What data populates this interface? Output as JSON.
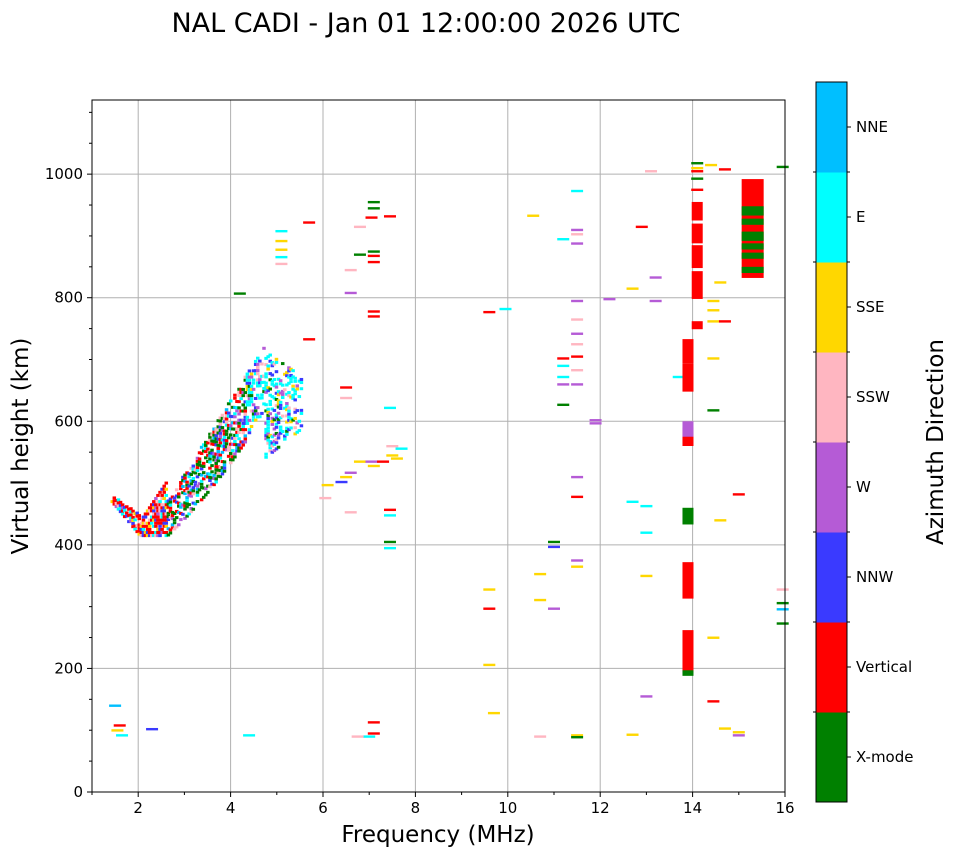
{
  "chart_data": {
    "type": "scatter",
    "title": "NAL CADI - Jan 01 12:00:00 2026 UTC",
    "xlabel": "Frequency (MHz)",
    "ylabel": "Virtual height (km)",
    "xlim": [
      1,
      16
    ],
    "ylim": [
      0,
      1120
    ],
    "xticks": [
      2,
      4,
      6,
      8,
      10,
      12,
      14,
      16
    ],
    "yticks": [
      0,
      200,
      400,
      600,
      800,
      1000
    ],
    "grid": true,
    "colorbar": {
      "title": "Azimuth Direction",
      "categories": [
        "X-mode",
        "Vertical",
        "NNW",
        "W",
        "SSW",
        "SSE",
        "E",
        "NNE"
      ],
      "colors": [
        "#008000",
        "#ff0000",
        "#3a3aff",
        "#b55bd6",
        "#ffb6c1",
        "#ffd700",
        "#00ffff",
        "#00bfff"
      ]
    },
    "cluster": {
      "description": "dense echo trace",
      "freq_range": [
        1.4,
        5.5
      ],
      "height_range": [
        405,
        810
      ]
    },
    "points": [
      [
        1.5,
        140,
        "NNE"
      ],
      [
        1.6,
        108,
        "Vertical"
      ],
      [
        1.55,
        100,
        "SSE"
      ],
      [
        1.65,
        92,
        "E"
      ],
      [
        2.3,
        102,
        "NNW"
      ],
      [
        4.4,
        92,
        "E"
      ],
      [
        7.0,
        90,
        "E"
      ],
      [
        7.1,
        113,
        "Vertical"
      ],
      [
        7.1,
        95,
        "Vertical"
      ],
      [
        5.1,
        908,
        "E"
      ],
      [
        5.1,
        892,
        "SSE"
      ],
      [
        5.1,
        878,
        "SSE"
      ],
      [
        5.1,
        866,
        "E"
      ],
      [
        5.1,
        855,
        "SSW"
      ],
      [
        5.7,
        922,
        "Vertical"
      ],
      [
        5.7,
        733,
        "Vertical"
      ],
      [
        4.2,
        807,
        "X-mode"
      ],
      [
        6.8,
        915,
        "SSW"
      ],
      [
        6.8,
        870,
        "X-mode"
      ],
      [
        6.6,
        845,
        "SSW"
      ],
      [
        6.6,
        808,
        "W"
      ],
      [
        7.1,
        955,
        "X-mode"
      ],
      [
        7.1,
        945,
        "X-mode"
      ],
      [
        7.05,
        930,
        "Vertical"
      ],
      [
        7.45,
        932,
        "Vertical"
      ],
      [
        7.1,
        875,
        "X-mode"
      ],
      [
        7.1,
        868,
        "Vertical"
      ],
      [
        7.1,
        858,
        "Vertical"
      ],
      [
        7.1,
        778,
        "Vertical"
      ],
      [
        7.1,
        770,
        "Vertical"
      ],
      [
        6.5,
        655,
        "Vertical"
      ],
      [
        6.5,
        638,
        "SSW"
      ],
      [
        7.45,
        622,
        "E"
      ],
      [
        6.6,
        517,
        "W"
      ],
      [
        6.4,
        502,
        "NNW"
      ],
      [
        6.5,
        510,
        "SSE"
      ],
      [
        6.6,
        453,
        "SSW"
      ],
      [
        6.1,
        497,
        "SSE"
      ],
      [
        6.05,
        476,
        "SSW"
      ],
      [
        6.8,
        535,
        "SSE"
      ],
      [
        7.05,
        535,
        "W"
      ],
      [
        7.1,
        528,
        "SSE"
      ],
      [
        7.3,
        535,
        "Vertical"
      ],
      [
        7.5,
        545,
        "SSE"
      ],
      [
        7.6,
        540,
        "SSE"
      ],
      [
        7.5,
        560,
        "SSW"
      ],
      [
        7.7,
        556,
        "E"
      ],
      [
        7.45,
        457,
        "Vertical"
      ],
      [
        7.45,
        448,
        "E"
      ],
      [
        7.45,
        405,
        "X-mode"
      ],
      [
        7.45,
        395,
        "E"
      ],
      [
        6.75,
        90,
        "SSW"
      ],
      [
        9.6,
        777,
        "Vertical"
      ],
      [
        9.95,
        782,
        "E"
      ],
      [
        10.55,
        933,
        "SSE"
      ],
      [
        11.5,
        973,
        "E"
      ],
      [
        11.5,
        910,
        "W"
      ],
      [
        11.5,
        903,
        "SSW"
      ],
      [
        11.5,
        888,
        "W"
      ],
      [
        11.2,
        895,
        "E"
      ],
      [
        11.5,
        795,
        "W"
      ],
      [
        11.5,
        765,
        "SSW"
      ],
      [
        11.5,
        742,
        "W"
      ],
      [
        11.5,
        725,
        "SSW"
      ],
      [
        11.5,
        705,
        "Vertical"
      ],
      [
        11.5,
        683,
        "SSW"
      ],
      [
        11.5,
        660,
        "W"
      ],
      [
        11.2,
        702,
        "Vertical"
      ],
      [
        11.2,
        690,
        "E"
      ],
      [
        11.2,
        672,
        "E"
      ],
      [
        11.2,
        660,
        "W"
      ],
      [
        11.2,
        627,
        "X-mode"
      ],
      [
        11.9,
        602,
        "W"
      ],
      [
        11.9,
        597,
        "W"
      ],
      [
        11.5,
        510,
        "W"
      ],
      [
        11.5,
        478,
        "Vertical"
      ],
      [
        11.5,
        375,
        "W"
      ],
      [
        11.5,
        365,
        "SSE"
      ],
      [
        11.0,
        405,
        "X-mode"
      ],
      [
        11.0,
        397,
        "NNW"
      ],
      [
        12.2,
        798,
        "W"
      ],
      [
        12.7,
        815,
        "SSE"
      ],
      [
        13.1,
        1005,
        "SSW"
      ],
      [
        12.9,
        915,
        "Vertical"
      ],
      [
        13.2,
        833,
        "W"
      ],
      [
        13.2,
        795,
        "W"
      ],
      [
        13.7,
        672,
        "E"
      ],
      [
        12.7,
        470,
        "E"
      ],
      [
        13.0,
        463,
        "E"
      ],
      [
        13.0,
        420,
        "E"
      ],
      [
        13.0,
        350,
        "SSE"
      ],
      [
        9.6,
        328,
        "SSE"
      ],
      [
        9.6,
        297,
        "Vertical"
      ],
      [
        9.6,
        206,
        "SSE"
      ],
      [
        9.7,
        128,
        "SSE"
      ],
      [
        10.7,
        353,
        "SSE"
      ],
      [
        10.7,
        311,
        "SSE"
      ],
      [
        11.0,
        297,
        "W"
      ],
      [
        10.7,
        90,
        "SSW"
      ],
      [
        11.5,
        92,
        "SSE"
      ],
      [
        11.5,
        89,
        "X-mode"
      ],
      [
        12.7,
        93,
        "SSE"
      ],
      [
        13.0,
        155,
        "W"
      ],
      [
        14.1,
        1018,
        "X-mode"
      ],
      [
        14.4,
        1015,
        "SSE"
      ],
      [
        14.1,
        1010,
        "SSE"
      ],
      [
        14.1,
        1005,
        "Vertical"
      ],
      [
        14.1,
        993,
        "X-mode"
      ],
      [
        14.1,
        975,
        "Vertical"
      ],
      [
        14.7,
        1008,
        "Vertical"
      ],
      [
        14.45,
        795,
        "SSE"
      ],
      [
        14.6,
        825,
        "SSE"
      ],
      [
        14.45,
        780,
        "SSE"
      ],
      [
        14.45,
        762,
        "SSE"
      ],
      [
        14.7,
        762,
        "Vertical"
      ],
      [
        14.45,
        702,
        "SSE"
      ],
      [
        14.45,
        618,
        "X-mode"
      ],
      [
        15.0,
        482,
        "Vertical"
      ],
      [
        14.6,
        440,
        "SSE"
      ],
      [
        14.45,
        250,
        "SSE"
      ],
      [
        14.45,
        147,
        "Vertical"
      ],
      [
        14.7,
        103,
        "SSE"
      ],
      [
        15.0,
        92,
        "W"
      ],
      [
        15.0,
        97,
        "SSE"
      ],
      [
        15.95,
        1012,
        "X-mode"
      ],
      [
        15.95,
        328,
        "SSW"
      ],
      [
        15.95,
        306,
        "X-mode"
      ],
      [
        15.95,
        296,
        "NNE"
      ],
      [
        15.95,
        273,
        "X-mode"
      ]
    ],
    "columns": [
      {
        "freq": 13.9,
        "h0": 313,
        "h1": 372,
        "azimuth": "Vertical"
      },
      {
        "freq": 13.9,
        "h0": 193,
        "h1": 262,
        "azimuth": "Vertical"
      },
      {
        "freq": 13.9,
        "h0": 188,
        "h1": 197,
        "azimuth": "X-mode"
      },
      {
        "freq": 13.9,
        "h0": 433,
        "h1": 460,
        "azimuth": "X-mode"
      },
      {
        "freq": 13.9,
        "h0": 560,
        "h1": 590,
        "azimuth": "Vertical"
      },
      {
        "freq": 13.9,
        "h0": 575,
        "h1": 600,
        "azimuth": "W"
      },
      {
        "freq": 13.9,
        "h0": 648,
        "h1": 693,
        "azimuth": "Vertical"
      },
      {
        "freq": 13.9,
        "h0": 693,
        "h1": 733,
        "azimuth": "Vertical"
      },
      {
        "freq": 14.1,
        "h0": 749,
        "h1": 762,
        "azimuth": "Vertical"
      },
      {
        "freq": 14.1,
        "h0": 798,
        "h1": 843,
        "azimuth": "Vertical"
      },
      {
        "freq": 14.1,
        "h0": 848,
        "h1": 885,
        "azimuth": "Vertical"
      },
      {
        "freq": 14.1,
        "h0": 888,
        "h1": 920,
        "azimuth": "Vertical"
      },
      {
        "freq": 14.1,
        "h0": 925,
        "h1": 955,
        "azimuth": "Vertical"
      },
      {
        "freq": 15.3,
        "h0": 832,
        "h1": 992,
        "azimuth": "Vertical"
      },
      {
        "freq": 15.3,
        "h0": 840,
        "h1": 850,
        "azimuth": "X-mode"
      },
      {
        "freq": 15.3,
        "h0": 863,
        "h1": 873,
        "azimuth": "X-mode"
      },
      {
        "freq": 15.3,
        "h0": 878,
        "h1": 888,
        "azimuth": "X-mode"
      },
      {
        "freq": 15.3,
        "h0": 892,
        "h1": 907,
        "azimuth": "X-mode"
      },
      {
        "freq": 15.3,
        "h0": 918,
        "h1": 928,
        "azimuth": "X-mode"
      },
      {
        "freq": 15.3,
        "h0": 933,
        "h1": 948,
        "azimuth": "X-mode"
      }
    ]
  }
}
